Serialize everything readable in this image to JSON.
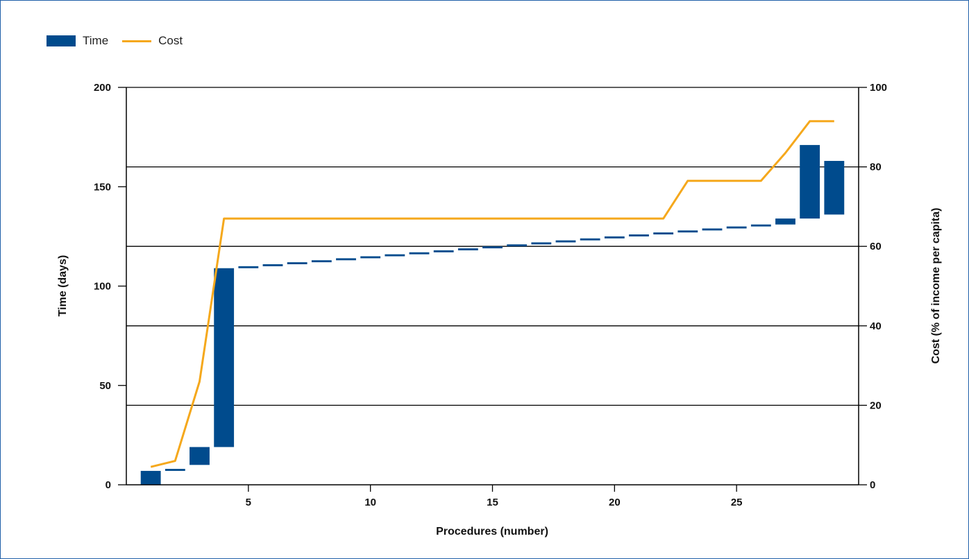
{
  "chart_data": {
    "type": "bar",
    "title": "",
    "xlabel": "Procedures (number)",
    "ylabel": "Time (days)",
    "y2label": "Cost (% of income per capita)",
    "xlim": [
      0,
      30
    ],
    "ylim": [
      0,
      200
    ],
    "y2lim": [
      0,
      100
    ],
    "x_ticks": [
      5,
      10,
      15,
      20,
      25
    ],
    "y_ticks": [
      0,
      50,
      100,
      150,
      200
    ],
    "y2_ticks": [
      0,
      20,
      40,
      60,
      80,
      100
    ],
    "grid": "horizontal lines at right-axis ticks",
    "legend_position": "top-left",
    "legend": [
      {
        "name": "Time",
        "color": "#004b8d",
        "kind": "bar"
      },
      {
        "name": "Cost",
        "color": "#f5a81c",
        "kind": "line"
      }
    ],
    "series": [
      {
        "name": "Time",
        "axis": "left",
        "kind": "floating-bar",
        "color": "#004b8d",
        "x": [
          1,
          2,
          3,
          4,
          5,
          6,
          7,
          8,
          9,
          10,
          11,
          12,
          13,
          14,
          15,
          16,
          17,
          18,
          19,
          20,
          21,
          22,
          23,
          24,
          25,
          26,
          27,
          28,
          29
        ],
        "start": [
          0,
          7,
          10,
          19,
          109,
          110,
          111,
          112,
          113,
          114,
          115,
          116,
          117,
          118,
          119,
          120,
          121,
          122,
          123,
          124,
          125,
          126,
          127,
          128,
          129,
          130,
          131,
          134,
          136
        ],
        "end": [
          7,
          8,
          19,
          109,
          110,
          111,
          112,
          113,
          114,
          115,
          116,
          117,
          118,
          119,
          120,
          121,
          122,
          123,
          124,
          125,
          126,
          127,
          128,
          129,
          130,
          131,
          134,
          171,
          163
        ]
      },
      {
        "name": "Cost",
        "axis": "right",
        "kind": "line",
        "color": "#f5a81c",
        "x": [
          1,
          2,
          3,
          4,
          5,
          6,
          7,
          8,
          9,
          10,
          11,
          12,
          13,
          14,
          15,
          16,
          17,
          18,
          19,
          20,
          21,
          22,
          23,
          24,
          25,
          26,
          27,
          28,
          29
        ],
        "values": [
          4.5,
          6,
          26,
          67,
          67,
          67,
          67,
          67,
          67,
          67,
          67,
          67,
          67,
          67,
          67,
          67,
          67,
          67,
          67,
          67,
          67,
          67,
          76.5,
          76.5,
          76.5,
          76.5,
          83.5,
          91.5,
          91.5
        ]
      }
    ]
  }
}
